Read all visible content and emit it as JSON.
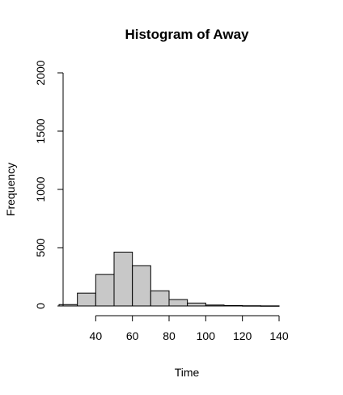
{
  "chart_data": {
    "type": "bar",
    "title": "Histogram of Away",
    "xlabel": "Time",
    "ylabel": "Frequency",
    "bin_edges": [
      20,
      30,
      40,
      50,
      60,
      70,
      80,
      90,
      100,
      110,
      120,
      130,
      140
    ],
    "values": [
      12,
      110,
      270,
      462,
      345,
      130,
      55,
      25,
      8,
      4,
      2,
      1
    ],
    "xlim": [
      20,
      140
    ],
    "ylim": [
      0,
      2000
    ],
    "x_ticks": [
      40,
      60,
      80,
      100,
      120,
      140
    ],
    "y_ticks": [
      0,
      500,
      1000,
      1500,
      2000
    ],
    "grid": false
  }
}
